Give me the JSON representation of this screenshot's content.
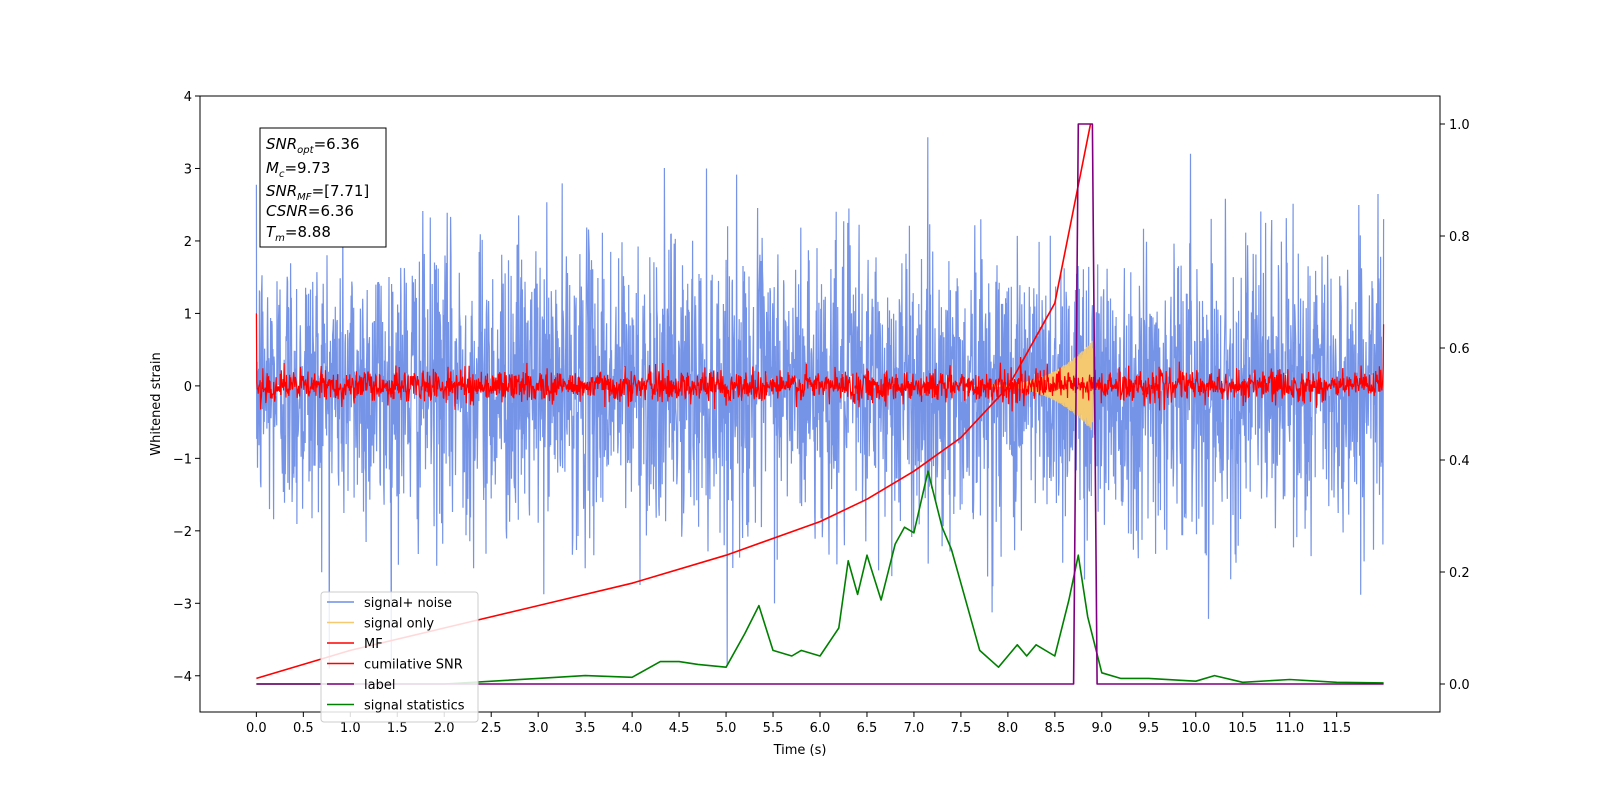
{
  "chart_data": {
    "type": "line",
    "xlabel": "Time (s)",
    "ylabel": "Whitened strain",
    "xlim": [
      -0.6,
      12.6
    ],
    "ylim": [
      -4.5,
      4.0
    ],
    "y2lim": [
      -0.05,
      1.05
    ],
    "x_ticks": [
      "0.0",
      "0.5",
      "1.0",
      "1.5",
      "2.0",
      "2.5",
      "3.0",
      "3.5",
      "4.0",
      "4.5",
      "5.0",
      "5.5",
      "6.0",
      "6.5",
      "7.0",
      "7.5",
      "8.0",
      "8.5",
      "9.0",
      "9.5",
      "10.0",
      "10.5",
      "11.0",
      "11.5"
    ],
    "y_ticks": [
      "4",
      "3",
      "2",
      "1",
      "0",
      "−1",
      "−2",
      "−3",
      "−4"
    ],
    "y2_ticks": [
      "1.0",
      "0.8",
      "0.6",
      "0.4",
      "0.2",
      "0.0"
    ],
    "stats_box": {
      "snr_opt": {
        "base": "SNR",
        "sub": "opt",
        "value": "=6.36"
      },
      "mc": {
        "base": "M",
        "sub": "c",
        "value": "=9.73"
      },
      "snr_mf": {
        "base": "SNR",
        "sub": "MF",
        "value": "=[7.71]"
      },
      "csnr": {
        "base": "CSNR",
        "sub": "",
        "value": "=6.36"
      },
      "tm": {
        "base": "T",
        "sub": "m",
        "value": "=8.88"
      }
    },
    "legend": {
      "placement": "lower-left",
      "entries": [
        {
          "label": "signal+ noise",
          "color": "#6f8ee6"
        },
        {
          "label": "signal only",
          "color": "#f5c970"
        },
        {
          "label": "MF",
          "color": "#ff0000"
        },
        {
          "label": "cumilative SNR",
          "color": "#ff0000"
        },
        {
          "label": "label",
          "color": "#7f007f"
        },
        {
          "label": "signal statistics",
          "color": "#008000"
        }
      ]
    },
    "series": [
      {
        "name": "signal+ noise",
        "axis": "left",
        "color": "#6f8ee6",
        "x_range": [
          0.0,
          12.0
        ],
        "mean": 0.0,
        "approx_min": -3.9,
        "approx_max": 3.6
      },
      {
        "name": "signal only",
        "axis": "left",
        "color": "#f5c970",
        "peak_x": 8.88,
        "peak_amplitude": 0.6
      },
      {
        "name": "MF",
        "axis": "left",
        "color": "#ff0000",
        "x_range": [
          0.0,
          12.0
        ],
        "approx_amplitude": 0.35
      },
      {
        "name": "cumilative SNR",
        "axis": "right",
        "color": "#ff0000",
        "x": [
          0.0,
          1.0,
          2.0,
          3.0,
          4.0,
          5.0,
          6.0,
          6.5,
          7.0,
          7.5,
          8.0,
          8.5,
          8.88
        ],
        "y": [
          0.01,
          0.06,
          0.1,
          0.14,
          0.18,
          0.23,
          0.29,
          0.33,
          0.38,
          0.44,
          0.53,
          0.68,
          1.0
        ]
      },
      {
        "name": "label",
        "axis": "right",
        "color": "#7f007f",
        "x": [
          0.0,
          8.7,
          8.75,
          8.9,
          8.95,
          12.0
        ],
        "y": [
          0.0,
          0.0,
          1.0,
          1.0,
          0.0,
          0.0
        ]
      },
      {
        "name": "signal statistics",
        "axis": "right",
        "color": "#008000",
        "x": [
          0.0,
          1.0,
          2.0,
          3.0,
          3.5,
          4.0,
          4.3,
          4.5,
          4.7,
          5.0,
          5.2,
          5.35,
          5.5,
          5.7,
          5.8,
          6.0,
          6.2,
          6.3,
          6.4,
          6.5,
          6.65,
          6.8,
          6.9,
          7.0,
          7.15,
          7.3,
          7.4,
          7.5,
          7.7,
          7.9,
          8.0,
          8.1,
          8.2,
          8.3,
          8.5,
          8.65,
          8.75,
          8.85,
          9.0,
          9.2,
          9.5,
          10.0,
          10.2,
          10.5,
          11.0,
          11.5,
          12.0
        ],
        "y": [
          0.0,
          0.0,
          0.0,
          0.01,
          0.015,
          0.012,
          0.04,
          0.04,
          0.035,
          0.03,
          0.09,
          0.14,
          0.06,
          0.05,
          0.06,
          0.05,
          0.1,
          0.22,
          0.16,
          0.23,
          0.15,
          0.25,
          0.28,
          0.27,
          0.38,
          0.28,
          0.24,
          0.18,
          0.06,
          0.03,
          0.05,
          0.07,
          0.05,
          0.07,
          0.05,
          0.15,
          0.23,
          0.12,
          0.02,
          0.01,
          0.01,
          0.005,
          0.015,
          0.003,
          0.008,
          0.003,
          0.002
        ]
      }
    ]
  }
}
